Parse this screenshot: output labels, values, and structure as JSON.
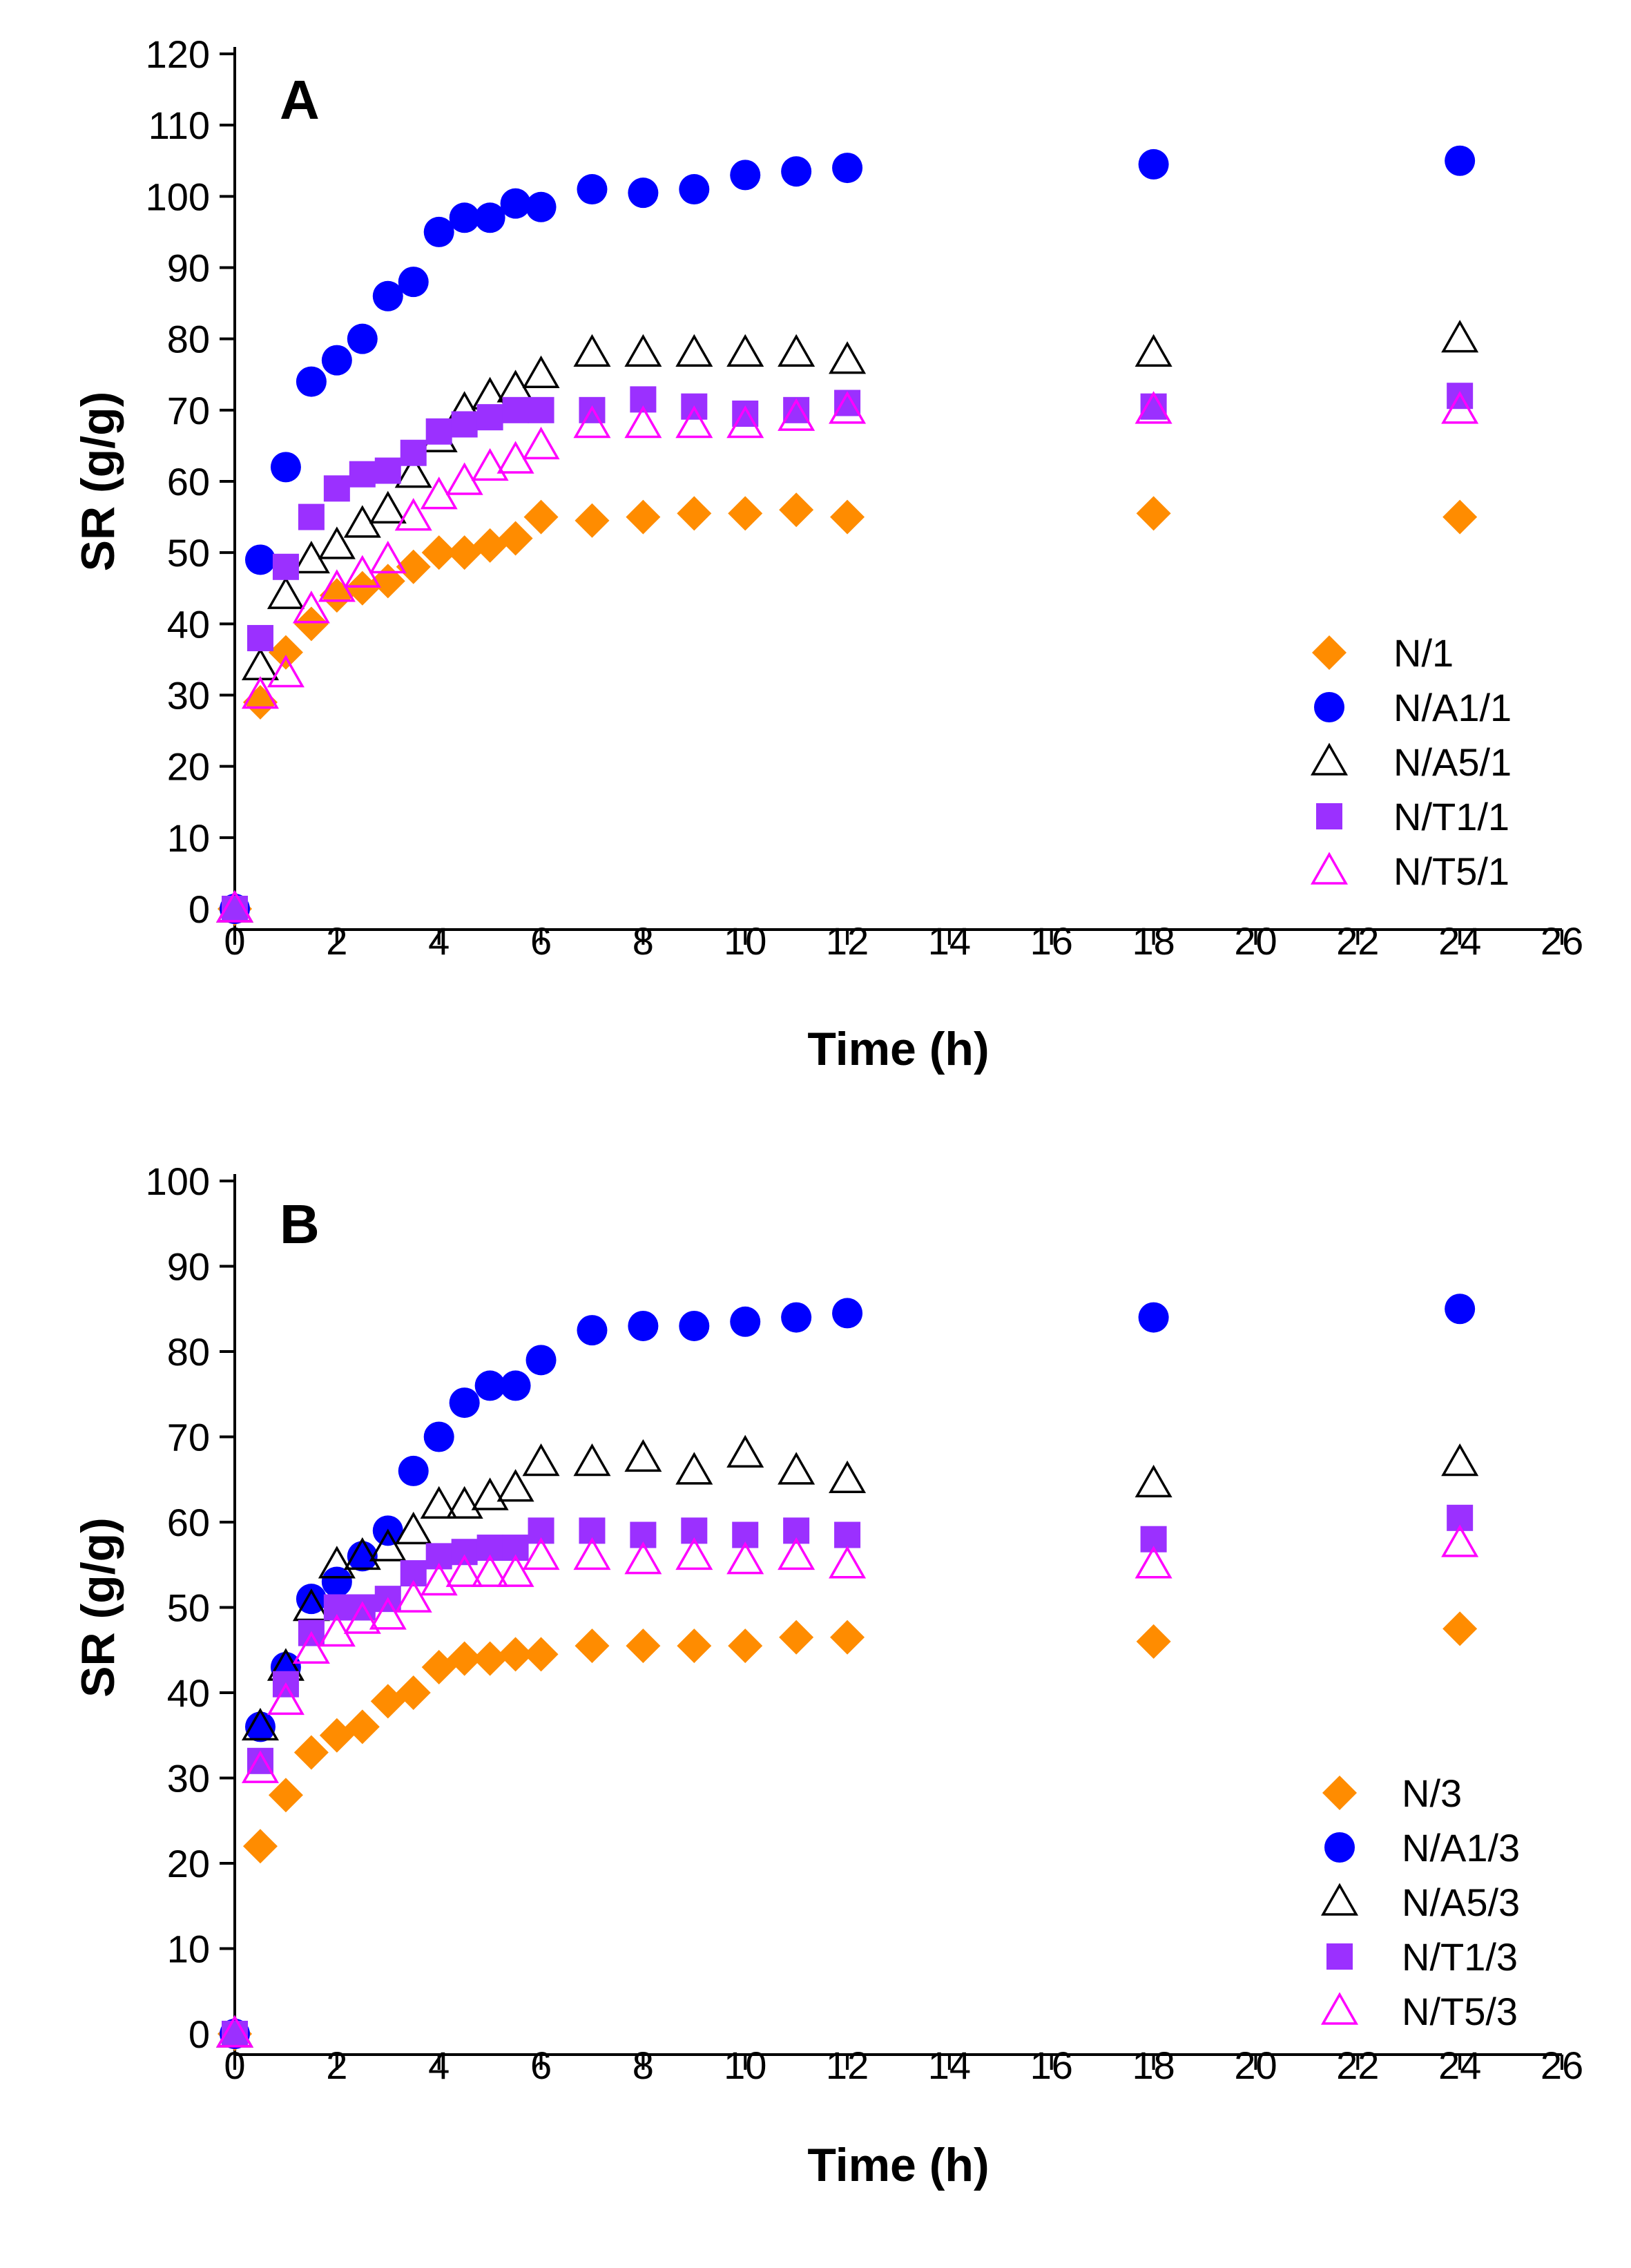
{
  "chart_data": [
    {
      "type": "scatter",
      "panel": "A",
      "xlabel": "Time (h)",
      "ylabel": "SR (g/g)",
      "xlim": [
        0,
        26
      ],
      "ylim": [
        0,
        120
      ],
      "xticks": [
        0,
        2,
        4,
        6,
        8,
        10,
        12,
        14,
        16,
        18,
        20,
        22,
        24,
        26
      ],
      "yticks": [
        0,
        10,
        20,
        30,
        40,
        50,
        60,
        70,
        80,
        90,
        100,
        110,
        120
      ],
      "legend_position": "center-right",
      "series": [
        {
          "name": "N/1",
          "marker": "diamond",
          "color": "#ff8c00",
          "filled": true,
          "x": [
            0,
            0.5,
            1,
            1.5,
            2,
            2.5,
            3,
            3.5,
            4,
            4.5,
            5,
            5.5,
            6,
            7,
            8,
            9,
            10,
            11,
            12,
            18,
            24
          ],
          "y": [
            0,
            29,
            36,
            40,
            44,
            45,
            46,
            48,
            50,
            50,
            51,
            52,
            55,
            54.5,
            55,
            55.5,
            55.5,
            56,
            55,
            55.5,
            55
          ]
        },
        {
          "name": "N/A1/1",
          "marker": "circle",
          "color": "#0000ff",
          "filled": true,
          "x": [
            0,
            0.5,
            1,
            1.5,
            2,
            2.5,
            3,
            3.5,
            4,
            4.5,
            5,
            5.5,
            6,
            7,
            8,
            9,
            10,
            11,
            12,
            18,
            24
          ],
          "y": [
            0,
            49,
            62,
            74,
            77,
            80,
            86,
            88,
            95,
            97,
            97,
            99,
            98.5,
            101,
            100.5,
            101,
            103,
            103.5,
            104,
            104.5,
            105
          ]
        },
        {
          "name": "N/A5/1",
          "marker": "triangle-up",
          "color": "#000000",
          "filled": false,
          "x": [
            0,
            0.5,
            1,
            1.5,
            2,
            2.5,
            3,
            3.5,
            4,
            4.5,
            5,
            5.5,
            6,
            7,
            8,
            9,
            10,
            11,
            12,
            18,
            24
          ],
          "y": [
            0,
            34,
            44,
            49,
            51,
            54,
            56,
            61,
            66,
            70,
            72,
            73,
            75,
            78,
            78,
            78,
            78,
            78,
            77,
            78,
            80
          ]
        },
        {
          "name": "N/T1/1",
          "marker": "square",
          "color": "#9b30ff",
          "filled": true,
          "x": [
            0,
            0.5,
            1,
            1.5,
            2,
            2.5,
            3,
            3.5,
            4,
            4.5,
            5,
            5.5,
            6,
            7,
            8,
            9,
            10,
            11,
            12,
            18,
            24
          ],
          "y": [
            0,
            38,
            48,
            55,
            59,
            61,
            61.5,
            64,
            67,
            68,
            69,
            70,
            70,
            70,
            71.5,
            70.5,
            69.5,
            70,
            71,
            70.5,
            72
          ]
        },
        {
          "name": "N/T5/1",
          "marker": "triangle-up",
          "color": "#ff00ff",
          "filled": false,
          "x": [
            0,
            0.5,
            1,
            1.5,
            2,
            2.5,
            3,
            3.5,
            4,
            4.5,
            5,
            5.5,
            6,
            7,
            8,
            9,
            10,
            11,
            12,
            18,
            24
          ],
          "y": [
            0,
            30,
            33,
            42,
            45,
            47,
            49,
            55,
            58,
            60,
            62,
            63,
            65,
            68,
            68,
            68,
            68,
            69,
            70,
            70,
            70
          ]
        }
      ]
    },
    {
      "type": "scatter",
      "panel": "B",
      "xlabel": "Time (h)",
      "ylabel": "SR (g/g)",
      "xlim": [
        0,
        26
      ],
      "ylim": [
        0,
        100
      ],
      "xticks": [
        0,
        2,
        4,
        6,
        8,
        10,
        12,
        14,
        16,
        18,
        20,
        22,
        24,
        26
      ],
      "yticks": [
        0,
        10,
        20,
        30,
        40,
        50,
        60,
        70,
        80,
        90,
        100
      ],
      "legend_position": "bottom-right",
      "series": [
        {
          "name": "N/3",
          "marker": "diamond",
          "color": "#ff8c00",
          "filled": true,
          "x": [
            0,
            0.5,
            1,
            1.5,
            2,
            2.5,
            3,
            3.5,
            4,
            4.5,
            5,
            5.5,
            6,
            7,
            8,
            9,
            10,
            11,
            12,
            18,
            24
          ],
          "y": [
            0,
            22,
            28,
            33,
            35,
            36,
            39,
            40,
            43,
            44,
            44,
            44.5,
            44.5,
            45.5,
            45.5,
            45.5,
            45.5,
            46.5,
            46.5,
            46,
            47.5
          ]
        },
        {
          "name": "N/A1/3",
          "marker": "circle",
          "color": "#0000ff",
          "filled": true,
          "x": [
            0,
            0.5,
            1,
            1.5,
            2,
            2.5,
            3,
            3.5,
            4,
            4.5,
            5,
            5.5,
            6,
            7,
            8,
            9,
            10,
            11,
            12,
            18,
            24
          ],
          "y": [
            0,
            36,
            43,
            51,
            53,
            56,
            59,
            66,
            70,
            74,
            76,
            76,
            79,
            82.5,
            83,
            83,
            83.5,
            84,
            84.5,
            84,
            85
          ]
        },
        {
          "name": "N/A5/3",
          "marker": "triangle-up",
          "color": "#000000",
          "filled": false,
          "x": [
            0,
            0.5,
            1,
            1.5,
            2,
            2.5,
            3,
            3.5,
            4,
            4.5,
            5,
            5.5,
            6,
            7,
            8,
            9,
            10,
            11,
            12,
            18,
            24
          ],
          "y": [
            0,
            36,
            43,
            50,
            55,
            56,
            57,
            59,
            62,
            62,
            63,
            64,
            67,
            67,
            67.5,
            66,
            68,
            66,
            65,
            64.5,
            67
          ]
        },
        {
          "name": "N/T1/3",
          "marker": "square",
          "color": "#9b30ff",
          "filled": true,
          "x": [
            0,
            0.5,
            1,
            1.5,
            2,
            2.5,
            3,
            3.5,
            4,
            4.5,
            5,
            5.5,
            6,
            7,
            8,
            9,
            10,
            11,
            12,
            18,
            24
          ],
          "y": [
            0,
            32,
            41,
            47,
            50,
            50,
            51,
            54,
            56,
            56.5,
            57,
            57,
            59,
            59,
            58.5,
            59,
            58.5,
            59,
            58.5,
            58,
            60.5
          ]
        },
        {
          "name": "N/T5/3",
          "marker": "triangle-up",
          "color": "#ff00ff",
          "filled": false,
          "x": [
            0,
            0.5,
            1,
            1.5,
            2,
            2.5,
            3,
            3.5,
            4,
            4.5,
            5,
            5.5,
            6,
            7,
            8,
            9,
            10,
            11,
            12,
            18,
            24
          ],
          "y": [
            0,
            31,
            39,
            45,
            47,
            48.5,
            49,
            51,
            53,
            54,
            54,
            54,
            56,
            56,
            55.5,
            56,
            55.5,
            56,
            55,
            55,
            57.5
          ]
        }
      ]
    }
  ]
}
